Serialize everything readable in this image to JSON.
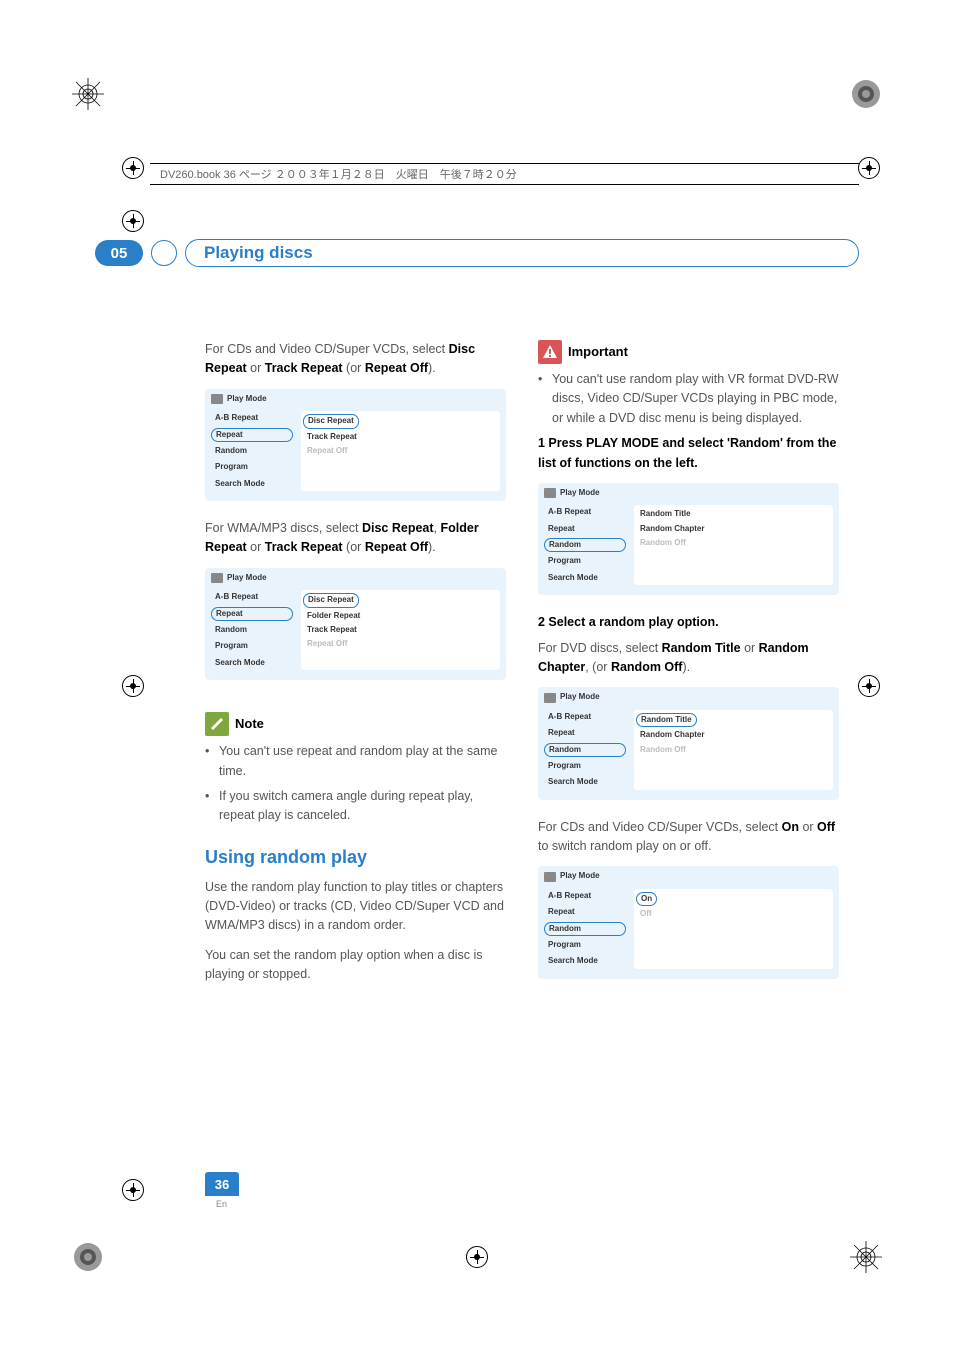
{
  "book_line": "DV260.book  36 ページ  ２００３年１月２８日　火曜日　午後７時２０分",
  "chapter_badge": "05",
  "chapter_title": "Playing discs",
  "left_column": {
    "intro1_a": "For CDs and Video CD/Super VCDs, select ",
    "intro1_b1": "Disc Repeat",
    "intro1_b2": " or ",
    "intro1_b3": "Track Repeat",
    "intro1_b4": " (or ",
    "intro1_b5": "Repeat Off",
    "intro1_b6": ").",
    "box1": {
      "title": "Play Mode",
      "left": [
        "A-B Repeat",
        "Repeat",
        "Random",
        "Program",
        "Search Mode"
      ],
      "selected_index": 1,
      "right": [
        "Disc Repeat",
        "Track Repeat",
        "Repeat Off"
      ],
      "right_selected": 0,
      "right_dim_from": 2
    },
    "intro2_a": "For WMA/MP3 discs, select ",
    "intro2_b1": "Disc Repeat",
    "intro2_b2": ", ",
    "intro2_b3": "Folder Repeat",
    "intro2_b4": " or ",
    "intro2_b5": "Track Repeat",
    "intro2_b6": " (or ",
    "intro2_b7": "Repeat Off",
    "intro2_b8": ").",
    "box2": {
      "title": "Play Mode",
      "left": [
        "A-B Repeat",
        "Repeat",
        "Random",
        "Program",
        "Search Mode"
      ],
      "selected_index": 1,
      "right": [
        "Disc Repeat",
        "Folder Repeat",
        "Track Repeat",
        "Repeat Off"
      ],
      "right_selected": 0,
      "right_dim_from": 3
    },
    "note_label": "Note",
    "note_bullets": [
      "You can't use repeat and random play at the same time.",
      "If you switch camera angle during repeat play, repeat play is canceled."
    ],
    "heading": "Using random play",
    "para1": "Use the random play function to play titles or chapters (DVD-Video) or tracks (CD, Video CD/Super VCD and WMA/MP3 discs) in a random order.",
    "para2": "You can set the random play option when a disc is playing or stopped."
  },
  "right_column": {
    "important_label": "Important",
    "important_bullet": "You can't use random play with VR format DVD-RW discs, Video CD/Super VCDs playing in PBC mode, or while a DVD disc menu is being displayed.",
    "step1": "1    Press PLAY MODE and select 'Random' from the list of functions on the left.",
    "box1": {
      "title": "Play Mode",
      "left": [
        "A-B Repeat",
        "Repeat",
        "Random",
        "Program",
        "Search Mode"
      ],
      "selected_index": 2,
      "right": [
        "Random Title",
        "Random Chapter",
        "Random Off"
      ],
      "right_selected": -1,
      "right_dim_from": 2
    },
    "step2_title": "2    Select a random play option.",
    "step2_body_a": "For DVD discs, select ",
    "step2_b1": "Random Title",
    "step2_b2": " or ",
    "step2_b3": "Random Chapter",
    "step2_b4": ", (or ",
    "step2_b5": "Random Off",
    "step2_b6": ").",
    "box2": {
      "title": "Play Mode",
      "left": [
        "A-B Repeat",
        "Repeat",
        "Random",
        "Program",
        "Search Mode"
      ],
      "selected_index": 2,
      "right": [
        "Random Title",
        "Random Chapter",
        "Random Off"
      ],
      "right_selected": 0,
      "right_dim_from": 2
    },
    "para3_a": "For CDs and Video CD/Super VCDs, select ",
    "para3_b1": "On",
    "para3_b2": " or ",
    "para3_b3": "Off",
    "para3_b4": " to switch random play on or off.",
    "box3": {
      "title": "Play Mode",
      "left": [
        "A-B Repeat",
        "Repeat",
        "Random",
        "Program",
        "Search Mode"
      ],
      "selected_index": 2,
      "right": [
        "On",
        "Off"
      ],
      "right_selected": 0,
      "right_dim_from": 1
    }
  },
  "page_number": "36",
  "page_lang": "En",
  "colors": {
    "accent": "#2a7fc9",
    "note_icon": "#7ea83f",
    "important_icon": "#d95555",
    "box_bg": "#e8f3fb"
  }
}
